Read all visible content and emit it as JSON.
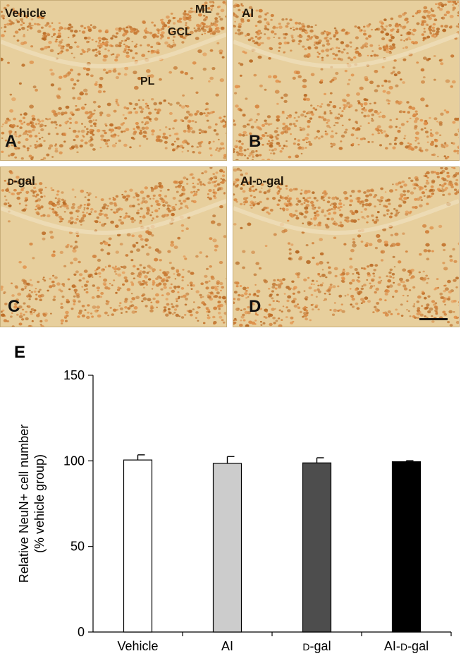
{
  "panels": [
    {
      "letter": "A",
      "label_main": "Vehicle",
      "label_prefix": ""
    },
    {
      "letter": "B",
      "label_main": "AI",
      "label_prefix": ""
    },
    {
      "letter": "C",
      "label_main": "-gal",
      "label_prefix": "d"
    },
    {
      "letter": "D",
      "label_main": "-gal",
      "label_prefix": "AI-d"
    }
  ],
  "regions": {
    "ml": "ML",
    "gcl": "GCL",
    "pl": "PL"
  },
  "panel_e_letter": "E",
  "colors": {
    "tissue": "#e7cf9d",
    "cells": "#b06a2c"
  },
  "chart_data": {
    "type": "bar",
    "categories": [
      "Vehicle",
      "AI",
      "D-gal",
      "AI-D-gal"
    ],
    "values": [
      100.5,
      98.5,
      98.8,
      99.5
    ],
    "errors": [
      3.0,
      4.0,
      3.0,
      0.6
    ],
    "bar_colors": [
      "#ffffff",
      "#cccccc",
      "#4d4d4d",
      "#000000"
    ],
    "ylabel_line1": "Relative NeuN+ cell number",
    "ylabel_line2": "(% vehicle group)",
    "yticks": [
      0,
      50,
      100,
      150
    ],
    "ylim": [
      0,
      150
    ],
    "grid": false
  }
}
